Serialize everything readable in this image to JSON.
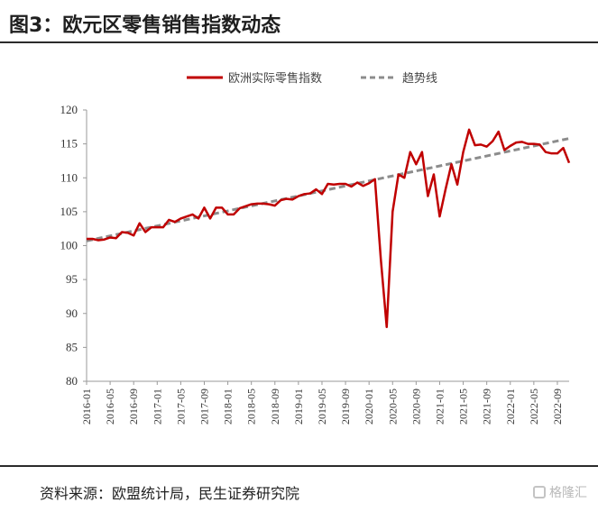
{
  "header": {
    "title": "图3：欧元区零售销售指数动态"
  },
  "footer": {
    "source": "资料来源：欧盟统计局，民生证券研究院",
    "watermark": "格隆汇"
  },
  "chart_data": {
    "type": "line",
    "title": "",
    "xlabel": "",
    "ylabel": "",
    "ylim": [
      80,
      120
    ],
    "yticks": [
      80,
      85,
      90,
      95,
      100,
      105,
      110,
      115,
      120
    ],
    "xtick_labels": [
      "2016-01",
      "2016-05",
      "2016-09",
      "2017-01",
      "2017-05",
      "2017-09",
      "2018-01",
      "2018-05",
      "2018-09",
      "2019-01",
      "2019-05",
      "2019-09",
      "2020-01",
      "2020-05",
      "2020-09",
      "2021-01",
      "2021-05",
      "2021-09",
      "2022-01",
      "2022-05",
      "2022-09"
    ],
    "legend_position": "top",
    "grid": false,
    "x": [
      "2016-01",
      "2016-02",
      "2016-03",
      "2016-04",
      "2016-05",
      "2016-06",
      "2016-07",
      "2016-08",
      "2016-09",
      "2016-10",
      "2016-11",
      "2016-12",
      "2017-01",
      "2017-02",
      "2017-03",
      "2017-04",
      "2017-05",
      "2017-06",
      "2017-07",
      "2017-08",
      "2017-09",
      "2017-10",
      "2017-11",
      "2017-12",
      "2018-01",
      "2018-02",
      "2018-03",
      "2018-04",
      "2018-05",
      "2018-06",
      "2018-07",
      "2018-08",
      "2018-09",
      "2018-10",
      "2018-11",
      "2018-12",
      "2019-01",
      "2019-02",
      "2019-03",
      "2019-04",
      "2019-05",
      "2019-06",
      "2019-07",
      "2019-08",
      "2019-09",
      "2019-10",
      "2019-11",
      "2019-12",
      "2020-01",
      "2020-02",
      "2020-03",
      "2020-04",
      "2020-05",
      "2020-06",
      "2020-07",
      "2020-08",
      "2020-09",
      "2020-10",
      "2020-11",
      "2020-12",
      "2021-01",
      "2021-02",
      "2021-03",
      "2021-04",
      "2021-05",
      "2021-06",
      "2021-07",
      "2021-08",
      "2021-09",
      "2021-10",
      "2021-11",
      "2021-12",
      "2022-01",
      "2022-02",
      "2022-03",
      "2022-04",
      "2022-05",
      "2022-06",
      "2022-07",
      "2022-08",
      "2022-09",
      "2022-10",
      "2022-11"
    ],
    "series": [
      {
        "name": "欧洲实际零售指数",
        "color": "#c00000",
        "style": "solid",
        "values": [
          101.0,
          101.0,
          100.8,
          100.9,
          101.2,
          101.1,
          102.0,
          101.9,
          101.5,
          103.3,
          102.0,
          102.7,
          102.7,
          102.7,
          103.8,
          103.5,
          104.0,
          104.3,
          104.6,
          104.0,
          105.6,
          104.0,
          105.6,
          105.6,
          104.6,
          104.6,
          105.5,
          105.8,
          106.1,
          106.2,
          106.2,
          106.1,
          105.9,
          106.7,
          106.9,
          106.8,
          107.3,
          107.6,
          107.7,
          108.3,
          107.6,
          109.1,
          109.0,
          109.1,
          109.1,
          108.7,
          109.3,
          108.8,
          109.2,
          109.8,
          98.0,
          88.0,
          105.0,
          110.5,
          110.0,
          113.8,
          112.0,
          113.8,
          107.3,
          110.5,
          104.3,
          108.3,
          112.0,
          109.0,
          113.8,
          117.1,
          114.8,
          114.9,
          114.6,
          115.4,
          116.8,
          114.1,
          114.7,
          115.2,
          115.3,
          115.0,
          115.0,
          114.9,
          113.8,
          113.6,
          113.6,
          114.4,
          112.2
        ]
      },
      {
        "name": "趋势线",
        "color": "#8c8c8c",
        "style": "dashed",
        "values_endpoints": [
          100.7,
          115.8
        ]
      }
    ]
  }
}
